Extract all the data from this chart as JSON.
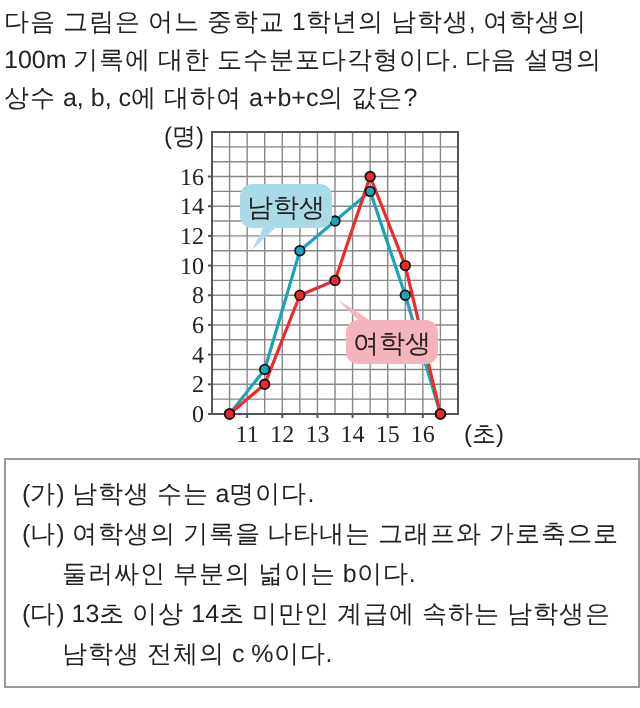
{
  "chart_data": {
    "type": "line",
    "title": "다음 그림은 어느 중학교 1학년의 남학생, 여학생의 100m 기록에 대한 도수분포다각형이다. 다음 설명의 상수 a, b, c에 대하여 a+b+c의 값은?",
    "xlabel": "(초)",
    "ylabel": "(명)",
    "x": [
      10.5,
      11.5,
      12.5,
      13.5,
      14.5,
      15.5,
      16.5
    ],
    "series": [
      {
        "name": "남학생",
        "color": "#1ba3b8",
        "values": [
          0,
          3,
          11,
          13,
          15,
          8,
          0
        ]
      },
      {
        "name": "여학생",
        "color": "#ee2a2a",
        "values": [
          0,
          2,
          8,
          9,
          16,
          10,
          0
        ]
      }
    ],
    "xlim": [
      10,
      17
    ],
    "ylim": [
      0,
      19
    ],
    "xticks": [
      11,
      12,
      13,
      14,
      15,
      16
    ],
    "yticks": [
      0,
      2,
      4,
      6,
      8,
      10,
      12,
      14,
      16
    ],
    "grid": true,
    "legend": "bottom right",
    "marker": "circle",
    "annotations": [
      "(가) 남학생 수는 a명이다.",
      "(나) 여학생의 기록을 나타내는 그래프와 가로축으로 둘러싸인 부분의 넓이는 b이다.",
      "(다) 13초 이상 14초 미만인 계급에 속하는 남학생은 남학생 전체의 c %이다."
    ]
  }
}
